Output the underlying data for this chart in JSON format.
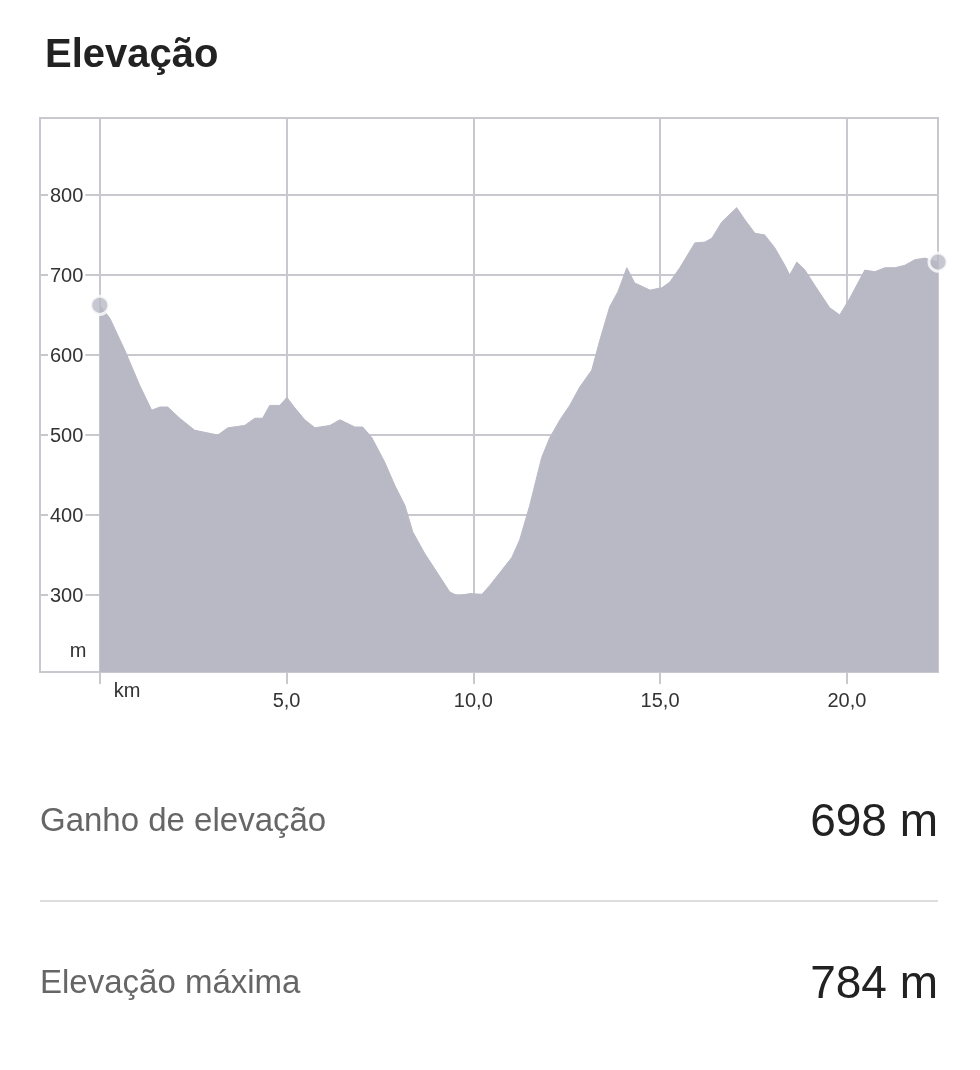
{
  "chart_data": {
    "type": "area",
    "title": "Elevação",
    "xlabel": "km",
    "ylabel": "m",
    "xlim": [
      -1.6,
      22.44
    ],
    "ylim": [
      204,
      896
    ],
    "xticks": [
      {
        "value": 0,
        "label": null
      },
      {
        "value": 5,
        "label": "5,0"
      },
      {
        "value": 10,
        "label": "10,0"
      },
      {
        "value": 15,
        "label": "15,0"
      },
      {
        "value": 20,
        "label": "20,0"
      }
    ],
    "yticks": [
      300,
      400,
      500,
      600,
      700,
      800
    ],
    "grid": true,
    "series": [
      {
        "color": "#b9b9c6",
        "x": [
          0,
          0.27,
          0.67,
          1.07,
          1.39,
          1.61,
          1.82,
          2.14,
          2.54,
          3.16,
          3.43,
          3.88,
          4.15,
          4.36,
          4.55,
          4.82,
          5.01,
          5.22,
          5.49,
          5.76,
          6.16,
          6.43,
          6.83,
          7.04,
          7.28,
          7.63,
          7.9,
          8.17,
          8.38,
          8.7,
          9.05,
          9.37,
          9.59,
          9.91,
          10.23,
          10.44,
          10.76,
          11.03,
          11.24,
          11.51,
          11.83,
          12.05,
          12.32,
          12.58,
          12.85,
          13.17,
          13.39,
          13.65,
          13.87,
          14.11,
          14.32,
          14.73,
          15.05,
          15.26,
          15.53,
          15.93,
          16.2,
          16.39,
          16.65,
          17.05,
          17.27,
          17.54,
          17.8,
          18.07,
          18.34,
          18.47,
          18.66,
          18.88,
          19.14,
          19.54,
          19.81,
          20.08,
          20.48,
          20.75,
          21.02,
          21.29,
          21.55,
          21.82,
          22.09,
          22.44
        ],
        "values": [
          662,
          646,
          606,
          562,
          531,
          535,
          535,
          521,
          506,
          500,
          509,
          512,
          521,
          521,
          537,
          537,
          547,
          534,
          519,
          509,
          512,
          519,
          510,
          510,
          497,
          466,
          437,
          412,
          379,
          352,
          327,
          304,
          299,
          302,
          301,
          312,
          331,
          347,
          369,
          412,
          472,
          497,
          519,
          537,
          560,
          581,
          619,
          660,
          679,
          709,
          690,
          681,
          684,
          691,
          709,
          740,
          741,
          746,
          766,
          784,
          769,
          752,
          750,
          734,
          712,
          700,
          716,
          706,
          687,
          659,
          650,
          671,
          706,
          704,
          709,
          709,
          712,
          719,
          721,
          716
        ]
      },
      {
        "type": "scatter",
        "marker": "circle",
        "color": "#b9b9c6",
        "x": [
          0,
          22.44
        ],
        "values": [
          662,
          716
        ]
      }
    ],
    "annotations": [
      "Ganho de elevação",
      "698 m",
      "Elevação máxima",
      "784 m"
    ]
  }
}
